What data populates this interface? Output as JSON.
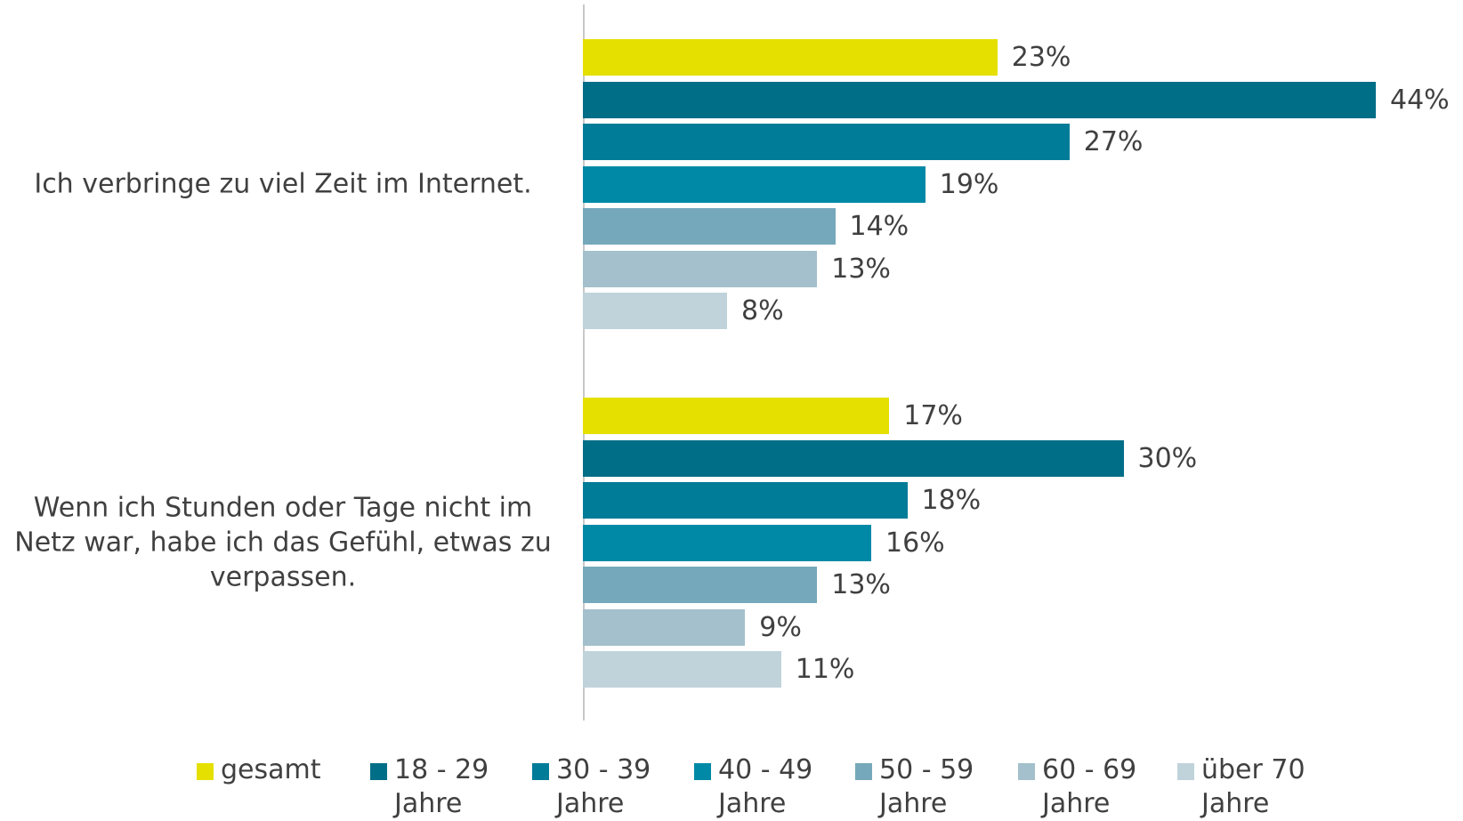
{
  "chart_data": {
    "type": "bar",
    "orientation": "horizontal",
    "categories": [
      "Ich verbringe zu viel Zeit im Internet.",
      "Wenn ich Stunden oder Tage nicht im Netz war, habe ich das Gefühl, etwas zu verpassen."
    ],
    "series": [
      {
        "name": "gesamt",
        "color": "#e5e000",
        "values": [
          23,
          17
        ],
        "value_labels": [
          "23%",
          "17%"
        ]
      },
      {
        "name": "18 - 29 Jahre",
        "color": "#006e87",
        "values": [
          44,
          30
        ],
        "value_labels": [
          "44%",
          "30%"
        ]
      },
      {
        "name": "30 - 39 Jahre",
        "color": "#007c98",
        "values": [
          27,
          18
        ],
        "value_labels": [
          "27%",
          "18%"
        ]
      },
      {
        "name": "40 - 49 Jahre",
        "color": "#0089a6",
        "values": [
          19,
          16
        ],
        "value_labels": [
          "19%",
          "16%"
        ]
      },
      {
        "name": "50 - 59 Jahre",
        "color": "#75a8ba",
        "values": [
          14,
          13
        ],
        "value_labels": [
          "14%",
          "13%"
        ]
      },
      {
        "name": "60 - 69 Jahre",
        "color": "#a3c0cc",
        "values": [
          13,
          9
        ],
        "value_labels": [
          "13%",
          "9%"
        ]
      },
      {
        "name": "über 70 Jahre",
        "color": "#c0d3da",
        "values": [
          8,
          11
        ],
        "value_labels": [
          "8%",
          "11%"
        ]
      }
    ],
    "legend": "bottom"
  }
}
